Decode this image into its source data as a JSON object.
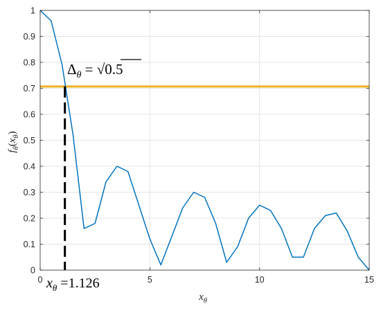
{
  "chart_data": {
    "type": "line",
    "xlabel": {
      "base": "x",
      "sub": "θ"
    },
    "ylabel": {
      "base": "f",
      "sub": "θ",
      "arg_base": "x",
      "arg_sub": "θ"
    },
    "xlim": [
      0,
      15
    ],
    "ylim": [
      0,
      1
    ],
    "x_ticks": [
      0,
      5,
      10,
      15
    ],
    "y_ticks": [
      0,
      0.1,
      0.2,
      0.3,
      0.4,
      0.5,
      0.6,
      0.7,
      0.8,
      0.9,
      1
    ],
    "x_tick_labels": [
      "0",
      "5",
      "10",
      "15"
    ],
    "y_tick_labels": [
      "0",
      "0.1",
      "0.2",
      "0.3",
      "0.4",
      "0.5",
      "0.6",
      "0.7",
      "0.8",
      "0.9",
      "1"
    ],
    "grid": true,
    "series": [
      {
        "color": "#0072BD",
        "x": [
          0,
          0.5,
          1.0,
          1.5,
          2.0,
          2.5,
          3.0,
          3.5,
          4.0,
          4.5,
          5.0,
          5.5,
          6.0,
          6.5,
          7.0,
          7.5,
          8.0,
          8.5,
          9.0,
          9.5,
          10.0,
          10.5,
          11.0,
          11.5,
          12.0,
          12.5,
          13.0,
          13.5,
          14.0,
          14.5,
          15.0
        ],
        "y": [
          1.0,
          0.96,
          0.79,
          0.52,
          0.16,
          0.18,
          0.34,
          0.4,
          0.38,
          0.25,
          0.12,
          0.02,
          0.13,
          0.24,
          0.3,
          0.28,
          0.18,
          0.03,
          0.09,
          0.2,
          0.25,
          0.23,
          0.16,
          0.05,
          0.05,
          0.16,
          0.21,
          0.22,
          0.15,
          0.05,
          0.0
        ]
      }
    ],
    "threshold": {
      "y": 0.7071,
      "color": "#EDB120"
    },
    "marker": {
      "x": 1.126
    },
    "annotations": {
      "delta": {
        "sym": "Δ",
        "sub": "θ",
        "eq": " = ",
        "sqrt": "√",
        "val": "0.5"
      },
      "xtheta": {
        "base": "x",
        "sub": "θ",
        "eq": " =",
        "val": "1.126"
      }
    }
  }
}
